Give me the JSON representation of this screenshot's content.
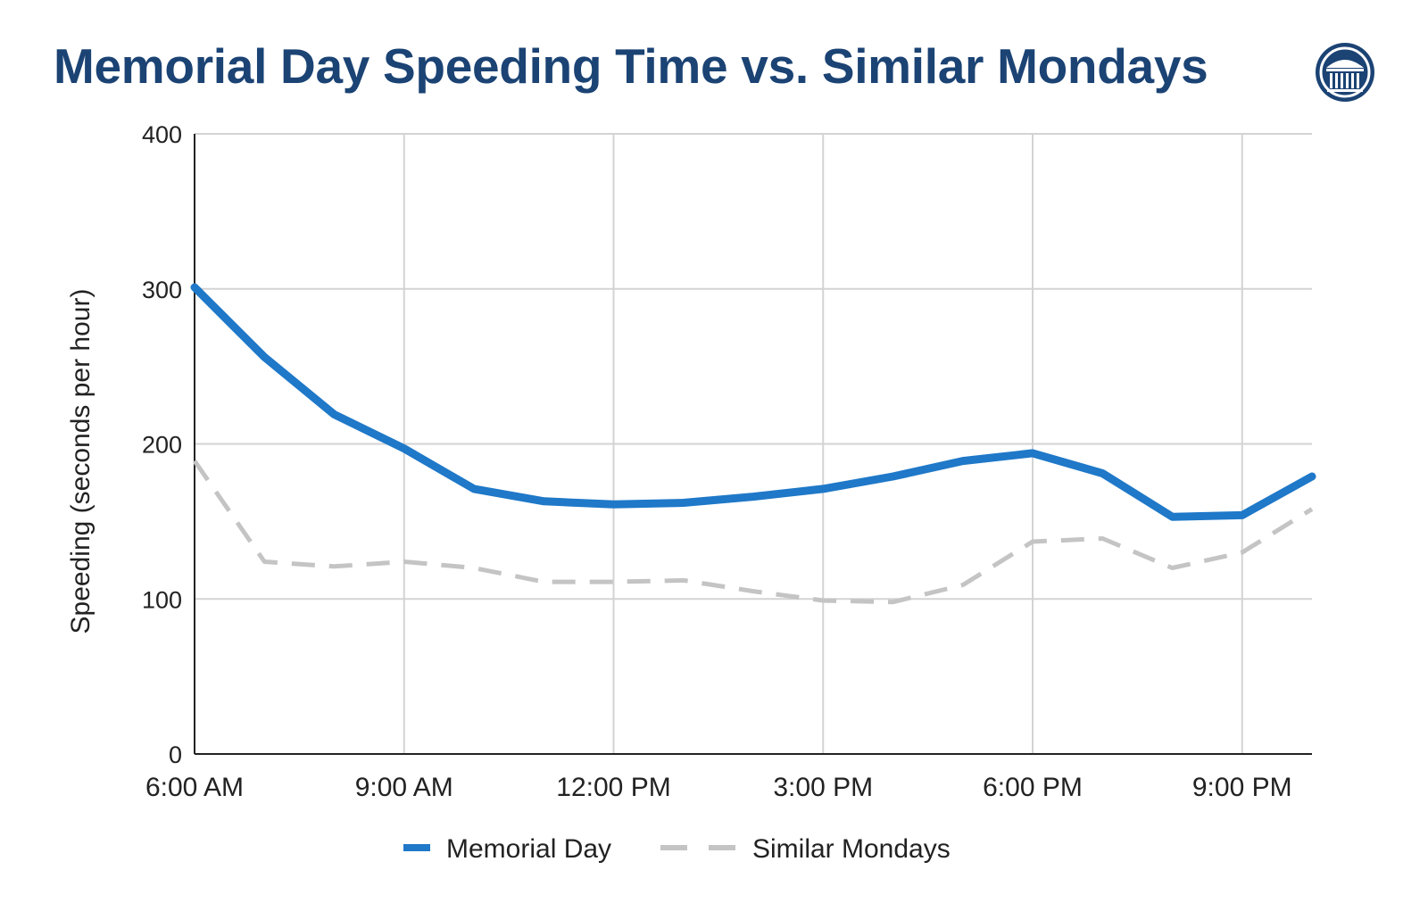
{
  "header": {
    "title": "Memorial Day Speeding Time vs. Similar Mondays",
    "logo_icon": "columned-building-seal-icon"
  },
  "colors": {
    "title": "#1b4374",
    "memorial_day": "#1f78c8",
    "similar_mondays": "#c4c4c4",
    "grid": "#d3d3d3",
    "axis": "#222222"
  },
  "chart_data": {
    "type": "line",
    "title": "Memorial Day Speeding Time vs. Similar Mondays",
    "ylabel": "Speeding (seconds per hour)",
    "xlabel": "",
    "ylim": [
      0,
      400
    ],
    "yticks": [
      0,
      100,
      200,
      300,
      400
    ],
    "xlim": [
      6,
      22
    ],
    "xticks": [
      {
        "value": 6,
        "label": "6:00 AM"
      },
      {
        "value": 9,
        "label": "9:00 AM"
      },
      {
        "value": 12,
        "label": "12:00 PM"
      },
      {
        "value": 15,
        "label": "3:00 PM"
      },
      {
        "value": 18,
        "label": "6:00 PM"
      },
      {
        "value": 21,
        "label": "9:00 PM"
      }
    ],
    "x": [
      6,
      7,
      8,
      9,
      10,
      11,
      12,
      13,
      14,
      15,
      16,
      17,
      18,
      19,
      20,
      21,
      22
    ],
    "series": [
      {
        "name": "Memorial Day",
        "style": "solid",
        "values": [
          301,
          256,
          219,
          197,
          171,
          163,
          161,
          162,
          166,
          171,
          179,
          189,
          194,
          181,
          153,
          154,
          179
        ]
      },
      {
        "name": "Similar Mondays",
        "style": "dashed",
        "values": [
          189,
          124,
          121,
          124,
          120,
          111,
          111,
          112,
          105,
          99,
          98,
          109,
          137,
          139,
          120,
          130,
          158
        ]
      }
    ],
    "grid": true,
    "legend_position": "bottom"
  }
}
